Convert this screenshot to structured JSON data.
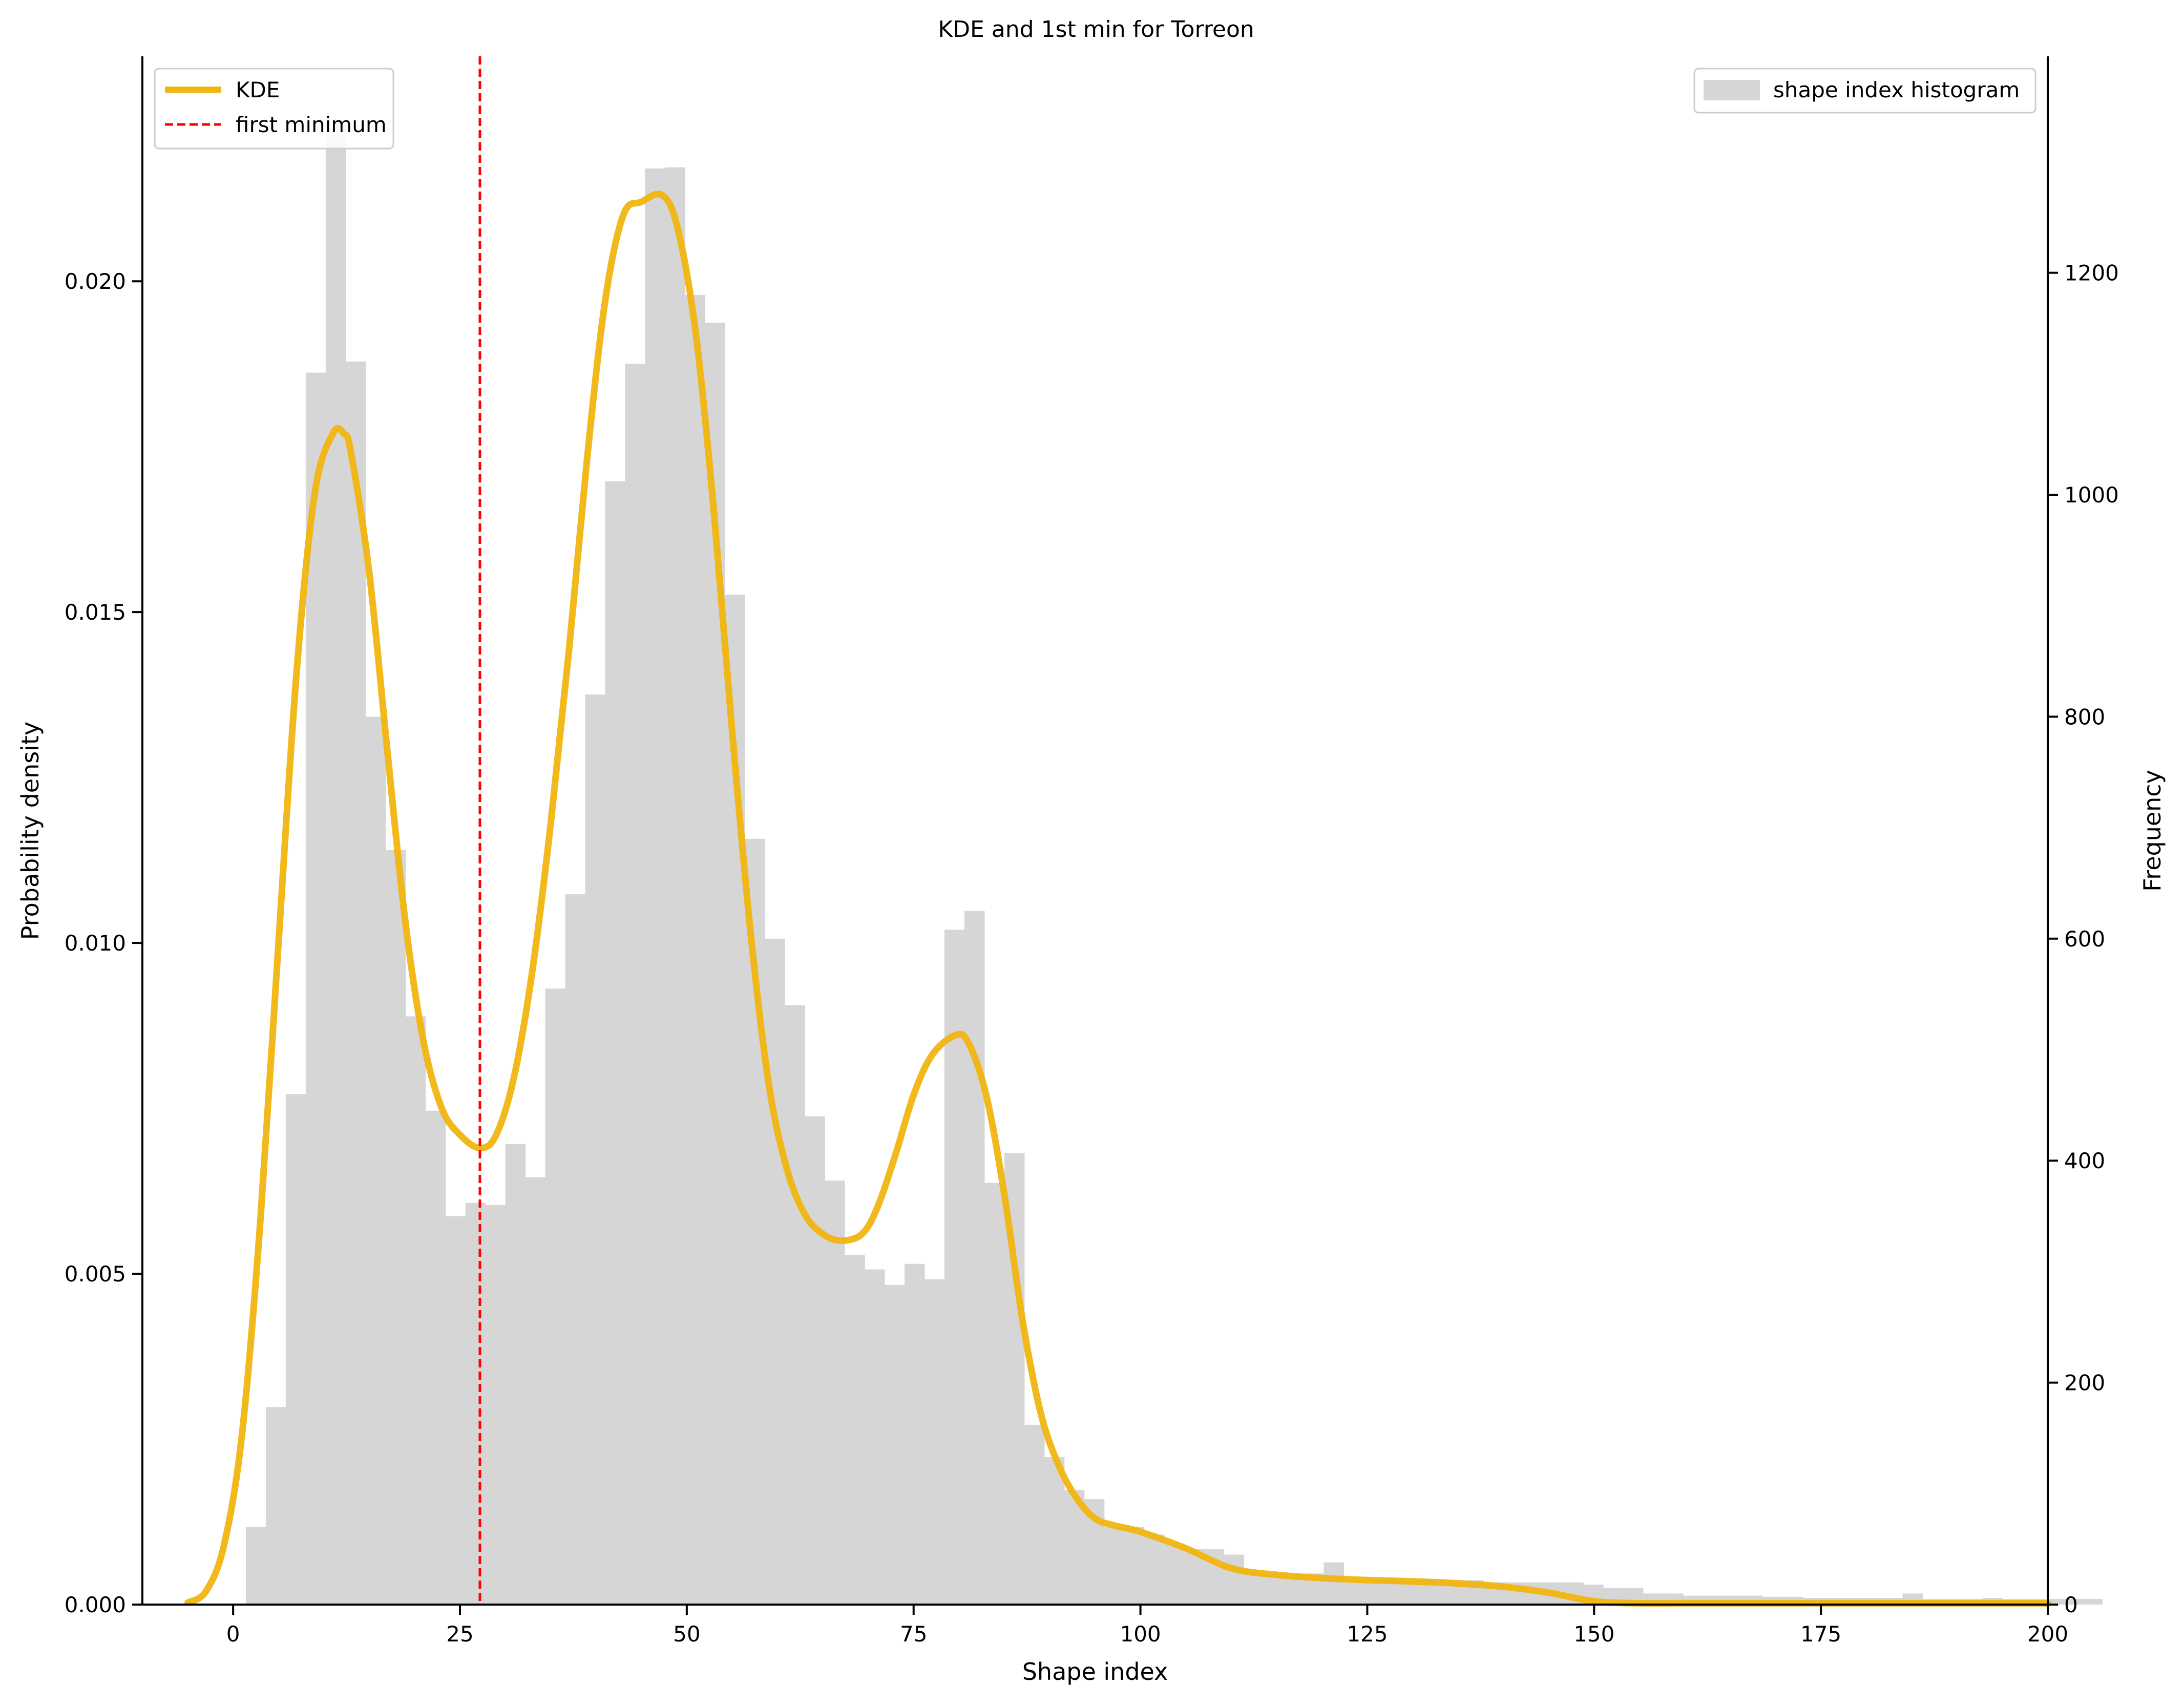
{
  "chart_data": {
    "type": "bar",
    "title": "KDE and 1st min for Torreon",
    "xlabel": "Shape index",
    "ylabel_left": "Probability density",
    "ylabel_right": "Frequency",
    "xlim": [
      -10,
      200
    ],
    "ylim_left": [
      0,
      0.0234
    ],
    "ylim_right": [
      0,
      1395
    ],
    "x_ticks": [
      0,
      25,
      50,
      75,
      100,
      125,
      150,
      175,
      200
    ],
    "y_left_ticks": [
      "0.000",
      "0.005",
      "0.010",
      "0.015",
      "0.020"
    ],
    "y_left_tick_values": [
      0,
      0.005,
      0.01,
      0.015,
      0.02
    ],
    "y_right_ticks": [
      0,
      200,
      400,
      600,
      800,
      1000,
      1200
    ],
    "grid": false,
    "histogram": {
      "name": "shape index histogram",
      "color": "#d6d6d6",
      "bin_start": 1.4,
      "bin_width": 2.2,
      "counts": [
        70,
        178,
        460,
        1110,
        1330,
        1120,
        800,
        680,
        530,
        445,
        350,
        362,
        360,
        415,
        385,
        555,
        640,
        820,
        1012,
        1118,
        1294,
        1295,
        1180,
        1155,
        910,
        690,
        600,
        540,
        440,
        382,
        315,
        302,
        288,
        307,
        293,
        608,
        625,
        380,
        407,
        162,
        133,
        103,
        95,
        70,
        70,
        63,
        55,
        50,
        50,
        45,
        28,
        28,
        28,
        28,
        38,
        22,
        22,
        22,
        22,
        22,
        22,
        22,
        20,
        20,
        20,
        20,
        20,
        18,
        15,
        15,
        10,
        10,
        8,
        8,
        8,
        8,
        7,
        7,
        6,
        6,
        6,
        6,
        6,
        10,
        5,
        5,
        5,
        6,
        5,
        5,
        5,
        5,
        5
      ]
    },
    "kde": {
      "name": "KDE",
      "color": "#f0b50f",
      "x": [
        -5,
        -3,
        -1,
        1,
        3,
        5,
        7,
        9,
        11,
        12.2,
        13,
        15,
        17,
        19,
        21,
        23,
        25,
        27.2,
        29,
        31,
        33,
        35,
        37,
        39,
        41,
        43,
        45,
        47.3,
        49,
        51,
        53,
        55,
        57,
        59,
        61,
        63,
        65,
        67,
        69.3,
        71,
        73,
        75,
        77,
        79.5,
        81,
        83,
        85,
        87,
        89,
        91,
        93,
        95,
        97,
        100,
        105,
        110,
        115,
        120,
        125,
        130,
        135,
        140,
        145,
        150,
        155,
        160,
        170,
        180,
        190,
        200
      ],
      "y": [
        3e-05,
        0.0002,
        0.0009,
        0.0026,
        0.0058,
        0.01,
        0.0141,
        0.0168,
        0.0177,
        0.0177,
        0.0174,
        0.0156,
        0.0129,
        0.0103,
        0.0085,
        0.0075,
        0.0071,
        0.0069,
        0.0071,
        0.008,
        0.0096,
        0.0118,
        0.0144,
        0.0173,
        0.0197,
        0.021,
        0.0212,
        0.0213,
        0.0208,
        0.0192,
        0.0165,
        0.0132,
        0.0102,
        0.0079,
        0.0066,
        0.0059,
        0.0056,
        0.0055,
        0.0056,
        0.006,
        0.0068,
        0.0077,
        0.0083,
        0.0086,
        0.0085,
        0.0077,
        0.0062,
        0.0043,
        0.0029,
        0.0021,
        0.0016,
        0.0013,
        0.0012,
        0.0011,
        0.00085,
        0.00055,
        0.00045,
        0.0004,
        0.00037,
        0.00035,
        0.00032,
        0.00027,
        0.00018,
        5e-05,
        2e-05,
        2e-05,
        2e-05,
        2e-05,
        2e-05,
        2e-05
      ]
    },
    "first_minimum": {
      "name": "first minimum",
      "x": 27.2,
      "color": "#ff0000"
    },
    "legend_left": {
      "placement": "upper-left",
      "entries": [
        "KDE",
        "first minimum"
      ]
    },
    "legend_right": {
      "placement": "upper-right",
      "entries": [
        "shape index histogram"
      ]
    }
  }
}
